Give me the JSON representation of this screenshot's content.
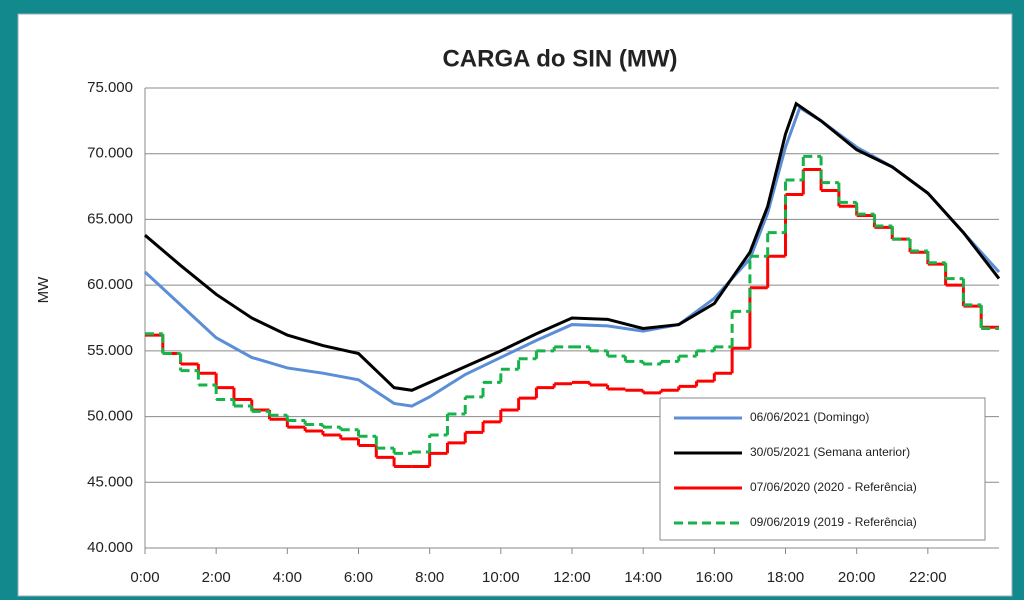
{
  "chart_data": {
    "type": "line",
    "title": "CARGA do SIN (MW)",
    "y_label": "MW",
    "xlim": [
      0,
      24
    ],
    "ylim": [
      40000,
      75000
    ],
    "xticks": [
      {
        "value": 0,
        "label": "0:00"
      },
      {
        "value": 2,
        "label": "2:00"
      },
      {
        "value": 4,
        "label": "4:00"
      },
      {
        "value": 6,
        "label": "6:00"
      },
      {
        "value": 8,
        "label": "8:00"
      },
      {
        "value": 10,
        "label": "10:00"
      },
      {
        "value": 12,
        "label": "12:00"
      },
      {
        "value": 14,
        "label": "14:00"
      },
      {
        "value": 16,
        "label": "16:00"
      },
      {
        "value": 18,
        "label": "18:00"
      },
      {
        "value": 20,
        "label": "20:00"
      },
      {
        "value": 22,
        "label": "22:00"
      }
    ],
    "yticks": [
      {
        "value": 40000,
        "label": "40.000"
      },
      {
        "value": 45000,
        "label": "45.000"
      },
      {
        "value": 50000,
        "label": "50.000"
      },
      {
        "value": 55000,
        "label": "55.000"
      },
      {
        "value": 60000,
        "label": "60.000"
      },
      {
        "value": 65000,
        "label": "65.000"
      },
      {
        "value": 70000,
        "label": "70.000"
      },
      {
        "value": 75000,
        "label": "75.000"
      }
    ],
    "grid": true,
    "legend": "lower right",
    "series": [
      {
        "name": "06/06/2021 (Domingo)",
        "color": "#5b8ed6",
        "step": false,
        "x": [
          0,
          1,
          2,
          3,
          4,
          5,
          6,
          7,
          7.5,
          8,
          9,
          10,
          11,
          12,
          13,
          14,
          15,
          16,
          17,
          17.5,
          18,
          18.4,
          19,
          20,
          21,
          22,
          23,
          24
        ],
        "values": [
          61000,
          58500,
          56000,
          54500,
          53700,
          53300,
          52800,
          51000,
          50800,
          51500,
          53200,
          54500,
          55800,
          57000,
          56900,
          56500,
          57000,
          59000,
          62000,
          65500,
          70500,
          73500,
          72500,
          70500,
          69000,
          67000,
          64000,
          61000
        ]
      },
      {
        "name": "30/05/2021 (Semana anterior)",
        "color": "#000000",
        "step": false,
        "x": [
          0,
          1,
          2,
          3,
          4,
          5,
          6,
          7,
          7.5,
          8,
          9,
          10,
          11,
          12,
          13,
          14,
          15,
          16,
          17,
          17.5,
          18,
          18.3,
          19,
          20,
          21,
          22,
          23,
          24
        ],
        "values": [
          63800,
          61500,
          59300,
          57500,
          56200,
          55400,
          54800,
          52200,
          52000,
          52600,
          53800,
          55000,
          56300,
          57500,
          57400,
          56700,
          57000,
          58600,
          62500,
          66000,
          71500,
          73800,
          72500,
          70300,
          69000,
          67000,
          64000,
          60500
        ]
      },
      {
        "name": "07/06/2020 (2020 - Referência)",
        "color": "#ff0000",
        "step": true,
        "x": [
          0,
          0.5,
          1,
          1.5,
          2,
          2.5,
          3,
          3.5,
          4,
          4.5,
          5,
          5.5,
          6,
          6.5,
          7,
          7.5,
          8,
          8.5,
          9,
          9.5,
          10,
          10.5,
          11,
          11.5,
          12,
          12.5,
          13,
          13.5,
          14,
          14.5,
          15,
          15.5,
          16,
          16.5,
          17,
          17.5,
          18,
          18.5,
          19,
          19.5,
          20,
          20.5,
          21,
          21.5,
          22,
          22.5,
          23,
          23.5
        ],
        "values": [
          56200,
          54800,
          54000,
          53300,
          52200,
          51300,
          50500,
          49800,
          49200,
          48900,
          48600,
          48300,
          47800,
          46900,
          46200,
          46200,
          47200,
          48000,
          48800,
          49600,
          50500,
          51400,
          52200,
          52500,
          52600,
          52400,
          52100,
          52000,
          51800,
          52000,
          52300,
          52700,
          53300,
          55200,
          59800,
          62200,
          66900,
          68800,
          67200,
          66000,
          65300,
          64400,
          63500,
          62500,
          61600,
          60000,
          58400,
          56800
        ]
      },
      {
        "name": "09/06/2019 (2019 - Referência)",
        "color": "#16b34a",
        "step": true,
        "dashed": true,
        "x": [
          0,
          0.5,
          1,
          1.5,
          2,
          2.5,
          3,
          3.5,
          4,
          4.5,
          5,
          5.5,
          6,
          6.5,
          7,
          7.5,
          8,
          8.5,
          9,
          9.5,
          10,
          10.5,
          11,
          11.5,
          12,
          12.5,
          13,
          13.5,
          14,
          14.5,
          15,
          15.5,
          16,
          16.5,
          17,
          17.5,
          18,
          18.5,
          19,
          19.5,
          20,
          20.5,
          21,
          21.5,
          22,
          22.5,
          23,
          23.5
        ],
        "values": [
          56300,
          54800,
          53500,
          52400,
          51300,
          50800,
          50400,
          50100,
          49700,
          49400,
          49200,
          49000,
          48500,
          47600,
          47200,
          47300,
          48600,
          50200,
          51500,
          52600,
          53600,
          54400,
          55000,
          55300,
          55300,
          55000,
          54600,
          54200,
          54000,
          54200,
          54600,
          55000,
          55300,
          58000,
          62200,
          64000,
          68000,
          69800,
          67800,
          66300,
          65400,
          64500,
          63500,
          62600,
          61700,
          60500,
          58500,
          56700
        ]
      }
    ]
  }
}
